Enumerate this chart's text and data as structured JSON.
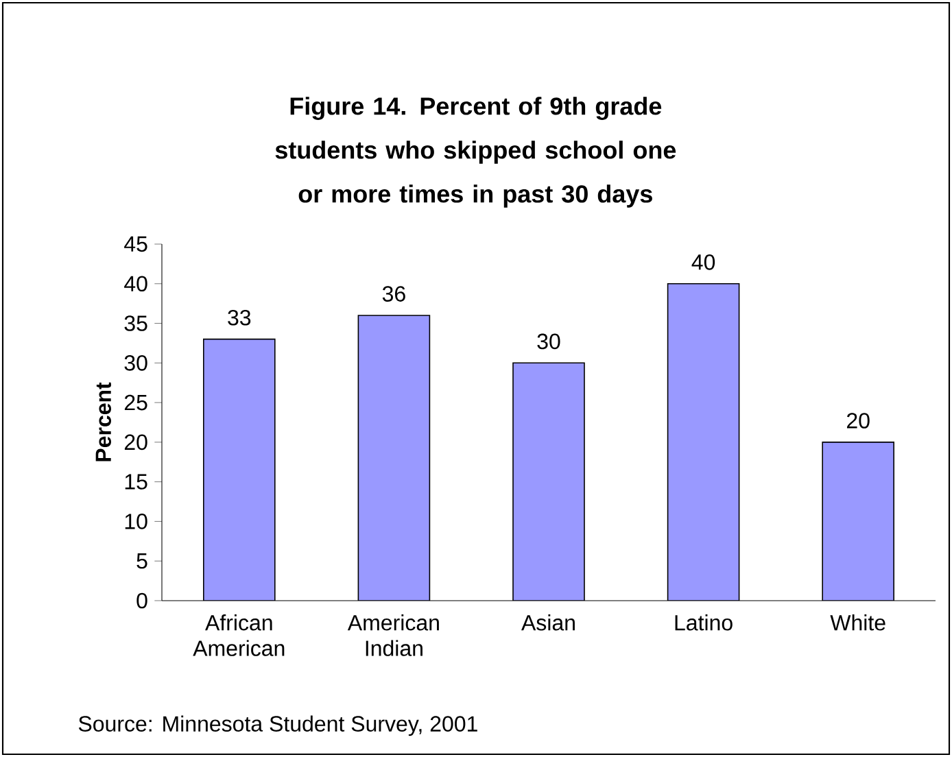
{
  "chart_data": {
    "type": "bar",
    "title": "Figure 14. Percent of 9th grade students who skipped school one or more times in past 30 days",
    "ylabel": "Percent",
    "categories": [
      "African American",
      "American Indian",
      "Asian",
      "Latino",
      "White"
    ],
    "values": [
      33,
      36,
      30,
      40,
      20
    ],
    "color": "#9999ff",
    "ylim": [
      0,
      45
    ],
    "yticks": [
      0,
      5,
      10,
      15,
      20,
      25,
      30,
      35,
      40,
      45
    ],
    "data_labels": true,
    "grid": false,
    "annotations": [
      "Source: Minnesota Student Survey, 2001"
    ]
  }
}
